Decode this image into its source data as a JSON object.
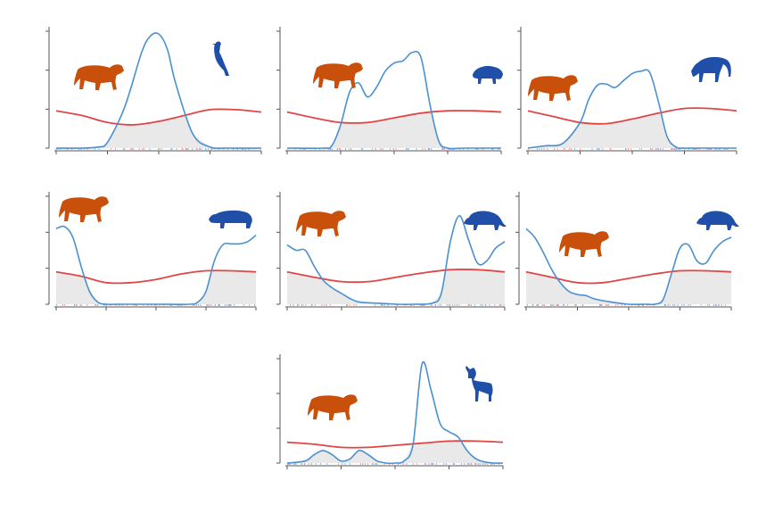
{
  "colors": {
    "predator": "#c8500a",
    "prey": "#1f4fa8",
    "predator_curve": "#e04646",
    "prey_curve": "#4a90d0",
    "overlap_fill": "#e9e9e9",
    "axis": "#555555",
    "rug_predator": "#e8a0a0",
    "rug_prey": "#8fb4e0"
  },
  "chart_data": [
    {
      "type": "line",
      "predator_icon": "puma-icon",
      "prey_icon": "guan-bird-icon",
      "xlim": [
        0,
        24
      ],
      "ylim": [
        0,
        1
      ],
      "series": [
        {
          "role": "predator",
          "x": [
            0,
            3,
            6,
            9,
            12,
            15,
            18,
            21,
            24
          ],
          "y": [
            0.32,
            0.28,
            0.22,
            0.2,
            0.23,
            0.28,
            0.33,
            0.33,
            0.31
          ]
        },
        {
          "role": "prey",
          "x": [
            0,
            3,
            5,
            6,
            8,
            10,
            11,
            12,
            13,
            14,
            16,
            18,
            20,
            24
          ],
          "y": [
            0,
            0,
            0.01,
            0.05,
            0.35,
            0.82,
            0.96,
            0.98,
            0.85,
            0.55,
            0.12,
            0.01,
            0,
            0
          ]
        }
      ]
    },
    {
      "type": "line",
      "predator_icon": "puma-icon",
      "prey_icon": "paca-icon",
      "xlim": [
        0,
        24
      ],
      "ylim": [
        0,
        1
      ],
      "series": [
        {
          "role": "predator",
          "x": [
            0,
            3,
            6,
            9,
            12,
            15,
            18,
            21,
            24
          ],
          "y": [
            0.31,
            0.26,
            0.22,
            0.22,
            0.26,
            0.3,
            0.32,
            0.32,
            0.31
          ]
        },
        {
          "role": "prey",
          "x": [
            0,
            4,
            5,
            6,
            7,
            8,
            9,
            10,
            11,
            12,
            13,
            14,
            15,
            16,
            17,
            18,
            20,
            24
          ],
          "y": [
            0,
            0,
            0.02,
            0.2,
            0.48,
            0.56,
            0.44,
            0.52,
            0.66,
            0.73,
            0.75,
            0.82,
            0.78,
            0.38,
            0.06,
            0,
            0,
            0
          ]
        }
      ]
    },
    {
      "type": "line",
      "predator_icon": "puma-icon",
      "prey_icon": "coati-icon",
      "xlim": [
        0,
        24
      ],
      "ylim": [
        0,
        1
      ],
      "series": [
        {
          "role": "predator",
          "x": [
            0,
            3,
            6,
            9,
            12,
            15,
            18,
            21,
            24
          ],
          "y": [
            0.32,
            0.27,
            0.22,
            0.21,
            0.25,
            0.3,
            0.34,
            0.34,
            0.32
          ]
        },
        {
          "role": "prey",
          "x": [
            0,
            2,
            4,
            6,
            7,
            8,
            9,
            10,
            11,
            12,
            13,
            14,
            15,
            16,
            17,
            18,
            20,
            24
          ],
          "y": [
            0,
            0.02,
            0.04,
            0.22,
            0.42,
            0.54,
            0.55,
            0.52,
            0.58,
            0.64,
            0.66,
            0.65,
            0.4,
            0.1,
            0.01,
            0,
            0,
            0
          ]
        }
      ]
    },
    {
      "type": "line",
      "predator_icon": "puma-icon",
      "prey_icon": "tapir-icon",
      "xlim": [
        0,
        24
      ],
      "ylim": [
        0,
        1
      ],
      "series": [
        {
          "role": "predator",
          "x": [
            0,
            3,
            6,
            9,
            12,
            15,
            18,
            21,
            24
          ],
          "y": [
            0.3,
            0.26,
            0.2,
            0.2,
            0.23,
            0.28,
            0.31,
            0.31,
            0.3
          ]
        },
        {
          "role": "prey",
          "x": [
            0,
            1,
            2,
            3,
            4,
            5,
            6,
            8,
            12,
            16,
            17,
            18,
            19,
            20,
            21,
            22,
            23,
            24
          ],
          "y": [
            0.7,
            0.72,
            0.62,
            0.35,
            0.12,
            0.02,
            0,
            0,
            0,
            0,
            0.02,
            0.12,
            0.4,
            0.55,
            0.56,
            0.56,
            0.58,
            0.64
          ]
        }
      ]
    },
    {
      "type": "line",
      "predator_icon": "puma-icon",
      "prey_icon": "armadillo-icon",
      "xlim": [
        0,
        24
      ],
      "ylim": [
        0,
        1
      ],
      "series": [
        {
          "role": "predator",
          "x": [
            0,
            3,
            6,
            9,
            12,
            15,
            18,
            21,
            24
          ],
          "y": [
            0.3,
            0.25,
            0.21,
            0.21,
            0.25,
            0.29,
            0.32,
            0.32,
            0.3
          ]
        },
        {
          "role": "prey",
          "x": [
            0,
            1,
            2,
            3,
            4,
            5,
            6,
            7,
            8,
            10,
            12,
            14,
            16,
            17,
            18,
            19,
            20,
            21,
            22,
            23,
            24
          ],
          "y": [
            0.55,
            0.5,
            0.5,
            0.35,
            0.22,
            0.15,
            0.1,
            0.05,
            0.02,
            0.01,
            0,
            0,
            0.01,
            0.1,
            0.58,
            0.82,
            0.6,
            0.38,
            0.4,
            0.52,
            0.58
          ]
        }
      ]
    },
    {
      "type": "line",
      "predator_icon": "puma-icon",
      "prey_icon": "armadillo-icon",
      "xlim": [
        0,
        24
      ],
      "ylim": [
        0,
        1
      ],
      "series": [
        {
          "role": "predator",
          "x": [
            0,
            3,
            6,
            9,
            12,
            15,
            18,
            21,
            24
          ],
          "y": [
            0.3,
            0.25,
            0.2,
            0.2,
            0.24,
            0.28,
            0.31,
            0.31,
            0.3
          ]
        },
        {
          "role": "prey",
          "x": [
            0,
            1,
            2,
            3,
            4,
            5,
            6,
            7,
            8,
            10,
            12,
            14,
            15,
            16,
            17,
            18,
            19,
            20,
            21,
            22,
            23,
            24
          ],
          "y": [
            0.7,
            0.62,
            0.48,
            0.32,
            0.2,
            0.12,
            0.09,
            0.08,
            0.05,
            0.02,
            0,
            0,
            0,
            0.04,
            0.28,
            0.52,
            0.55,
            0.4,
            0.38,
            0.5,
            0.58,
            0.62
          ]
        }
      ]
    },
    {
      "type": "line",
      "predator_icon": "puma-icon",
      "prey_icon": "deer-icon",
      "xlim": [
        0,
        24
      ],
      "ylim": [
        0,
        1
      ],
      "series": [
        {
          "role": "predator",
          "x": [
            0,
            3,
            6,
            9,
            12,
            15,
            18,
            21,
            24
          ],
          "y": [
            0.2,
            0.18,
            0.15,
            0.15,
            0.17,
            0.19,
            0.21,
            0.21,
            0.2
          ]
        },
        {
          "role": "prey",
          "x": [
            0,
            2,
            3,
            4,
            5,
            6,
            7,
            8,
            9,
            10,
            11,
            12,
            13,
            14,
            15,
            16,
            17,
            18,
            19,
            20,
            21,
            22,
            23,
            24
          ],
          "y": [
            0,
            0.02,
            0.08,
            0.12,
            0.08,
            0.02,
            0.04,
            0.12,
            0.08,
            0.02,
            0,
            0,
            0.02,
            0.18,
            0.95,
            0.7,
            0.38,
            0.3,
            0.25,
            0.12,
            0.04,
            0.01,
            0,
            0
          ]
        }
      ]
    }
  ]
}
